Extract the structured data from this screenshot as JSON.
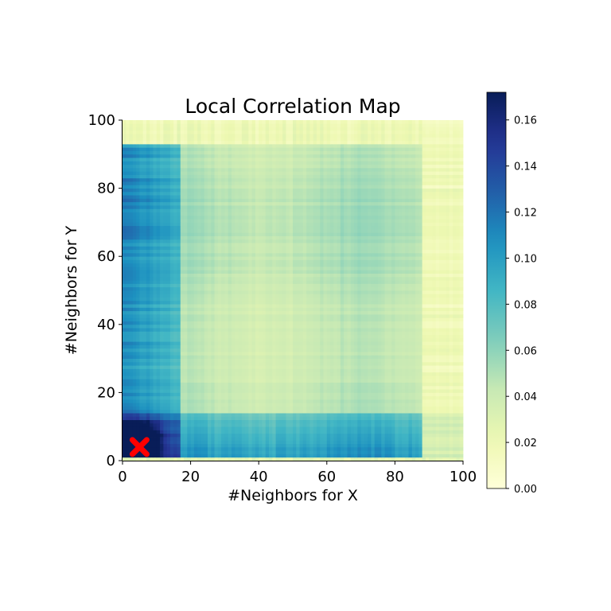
{
  "chart_data": {
    "type": "heatmap",
    "title": "Local Correlation Map",
    "xlabel": "#Neighbors for X",
    "ylabel": "#Neighbors for Y",
    "xlim": [
      0,
      100
    ],
    "ylim": [
      0,
      100
    ],
    "xticks": [
      0,
      20,
      40,
      60,
      80,
      100
    ],
    "yticks": [
      0,
      20,
      40,
      60,
      80,
      100
    ],
    "colorbar": {
      "colormap": "YlGnBu",
      "vmin": 0,
      "vmax": 0.172,
      "ticks": [
        "0.00",
        "0.02",
        "0.04",
        "0.06",
        "0.08",
        "0.10",
        "0.12",
        "0.14",
        "0.16"
      ],
      "tick_values": [
        0,
        0.02,
        0.04,
        0.06,
        0.08,
        0.1,
        0.12,
        0.14,
        0.16
      ]
    },
    "marker": {
      "symbol": "X",
      "color": "#ff0000",
      "x": 5,
      "y": 4
    },
    "grid": false,
    "regions": [
      {
        "name": "background",
        "value": 0.045
      },
      {
        "name": "top-strip-y-gt-93",
        "value": 0.018
      },
      {
        "name": "right-strip-x-gt-88",
        "value": 0.02
      },
      {
        "name": "left-column-x-lt-17",
        "value": 0.1
      },
      {
        "name": "bottom-row-y-lt-14",
        "value": 0.095
      },
      {
        "name": "hot-corner-x5-y6",
        "value": 0.165
      }
    ]
  }
}
